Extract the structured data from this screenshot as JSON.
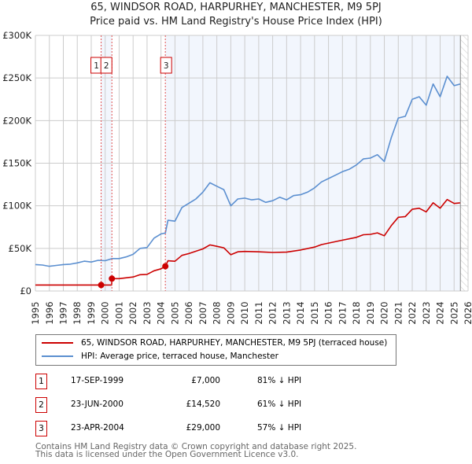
{
  "title_line1": "65, WINDSOR ROAD, HARPURHEY, MANCHESTER, M9 5PJ",
  "title_line2": "Price paid vs. HM Land Registry's House Price Index (HPI)",
  "chart_data": {
    "type": "line",
    "title": "65, WINDSOR ROAD, HARPURHEY, MANCHESTER, M9 5PJ — Price paid vs. HM Land Registry's House Price Index (HPI)",
    "xlim": [
      1995,
      2026
    ],
    "ylim": [
      0,
      300000
    ],
    "x_ticks": [
      "1995",
      "1996",
      "1997",
      "1998",
      "1999",
      "2000",
      "2001",
      "2002",
      "2003",
      "2004",
      "2005",
      "2006",
      "2007",
      "2008",
      "2009",
      "2010",
      "2011",
      "2012",
      "2013",
      "2014",
      "2015",
      "2016",
      "2017",
      "2018",
      "2019",
      "2020",
      "2021",
      "2022",
      "2023",
      "2024",
      "2025",
      "2026"
    ],
    "y_ticks": [
      {
        "v": 0,
        "label": "£0"
      },
      {
        "v": 50000,
        "label": "£50K"
      },
      {
        "v": 100000,
        "label": "£100K"
      },
      {
        "v": 150000,
        "label": "£150K"
      },
      {
        "v": 200000,
        "label": "£200K"
      },
      {
        "v": 250000,
        "label": "£250K"
      },
      {
        "v": 300000,
        "label": "£300K"
      }
    ],
    "grid": true,
    "data_end": 2025.45,
    "series": [
      {
        "name": "65, WINDSOR ROAD, HARPURHEY, MANCHESTER, M9 5PJ (terraced house)",
        "color": "#cc0000",
        "x": [
          1995,
          1998,
          1999.71,
          2000.47,
          2000.48,
          2001,
          2002,
          2002.5,
          2003,
          2003.5,
          2004,
          2004.31,
          2004.5,
          2005,
          2005.5,
          2006,
          2007,
          2007.5,
          2008,
          2008.5,
          2009,
          2009.5,
          2010,
          2011,
          2012,
          2013,
          2014,
          2015,
          2015.5,
          2016,
          2017,
          2018,
          2018.5,
          2019,
          2019.5,
          2020,
          2020.5,
          2021,
          2021.5,
          2022,
          2022.5,
          2023,
          2023.5,
          2024,
          2024.5,
          2025,
          2025.45
        ],
        "y": [
          7000,
          7000,
          7000,
          7000,
          14520,
          14520,
          16400,
          19100,
          19500,
          23700,
          26000,
          29000,
          35400,
          34900,
          41800,
          43900,
          49400,
          54100,
          52400,
          50700,
          42600,
          46000,
          46400,
          46000,
          45200,
          45600,
          48100,
          51500,
          54500,
          56200,
          59600,
          63000,
          66000,
          66500,
          68200,
          64800,
          76700,
          86500,
          87300,
          95900,
          97100,
          92900,
          103500,
          97100,
          107400,
          102700,
          103500
        ]
      },
      {
        "name": "HPI: Average price, terraced house, Manchester",
        "color": "#5b8fd0",
        "x": [
          1995,
          1995.5,
          1996,
          1996.5,
          1997,
          1997.5,
          1998,
          1998.5,
          1999,
          1999.5,
          2000,
          2000.5,
          2001,
          2001.5,
          2002,
          2002.5,
          2003,
          2003.5,
          2004,
          2004.31,
          2004.5,
          2005,
          2005.5,
          2006,
          2006.5,
          2007,
          2007.5,
          2008,
          2008.5,
          2009,
          2009.5,
          2010,
          2010.5,
          2011,
          2011.5,
          2012,
          2012.5,
          2013,
          2013.5,
          2014,
          2014.5,
          2015,
          2015.5,
          2016,
          2016.5,
          2017,
          2017.5,
          2018,
          2018.5,
          2019,
          2019.5,
          2020,
          2020.5,
          2021,
          2021.5,
          2022,
          2022.5,
          2023,
          2023.5,
          2024,
          2024.5,
          2025,
          2025.45
        ],
        "y": [
          31000,
          30500,
          29000,
          30000,
          31000,
          31500,
          33000,
          35000,
          34000,
          36000,
          35500,
          38000,
          38000,
          40000,
          43000,
          50000,
          51000,
          62000,
          67000,
          68000,
          83000,
          82000,
          98000,
          103000,
          108000,
          116000,
          127000,
          123000,
          119000,
          100000,
          108000,
          109000,
          107000,
          108000,
          104000,
          106000,
          110000,
          107000,
          112000,
          113000,
          116000,
          121000,
          128000,
          132000,
          136000,
          140000,
          143000,
          148000,
          155000,
          156000,
          160000,
          152000,
          180000,
          203000,
          205000,
          225000,
          228000,
          218000,
          243000,
          228000,
          252000,
          241000,
          243000
        ]
      }
    ],
    "sales": [
      {
        "n": "1",
        "x": 1999.71,
        "price": 7000
      },
      {
        "n": "2",
        "x": 2000.48,
        "price": 14520
      },
      {
        "n": "3",
        "x": 2004.31,
        "price": 29000
      }
    ]
  },
  "legend": {
    "property": "65, WINDSOR ROAD, HARPURHEY, MANCHESTER, M9 5PJ (terraced house)",
    "hpi": "HPI: Average price, terraced house, Manchester"
  },
  "sales_table": [
    {
      "n": "1",
      "date": "17-SEP-1999",
      "price": "£7,000",
      "hpi": "81% ↓ HPI"
    },
    {
      "n": "2",
      "date": "23-JUN-2000",
      "price": "£14,520",
      "hpi": "61% ↓ HPI"
    },
    {
      "n": "3",
      "date": "23-APR-2004",
      "price": "£29,000",
      "hpi": "57% ↓ HPI"
    }
  ],
  "footer": {
    "line1": "Contains HM Land Registry data © Crown copyright and database right 2025.",
    "line2": "This data is licensed under the Open Government Licence v3.0."
  }
}
